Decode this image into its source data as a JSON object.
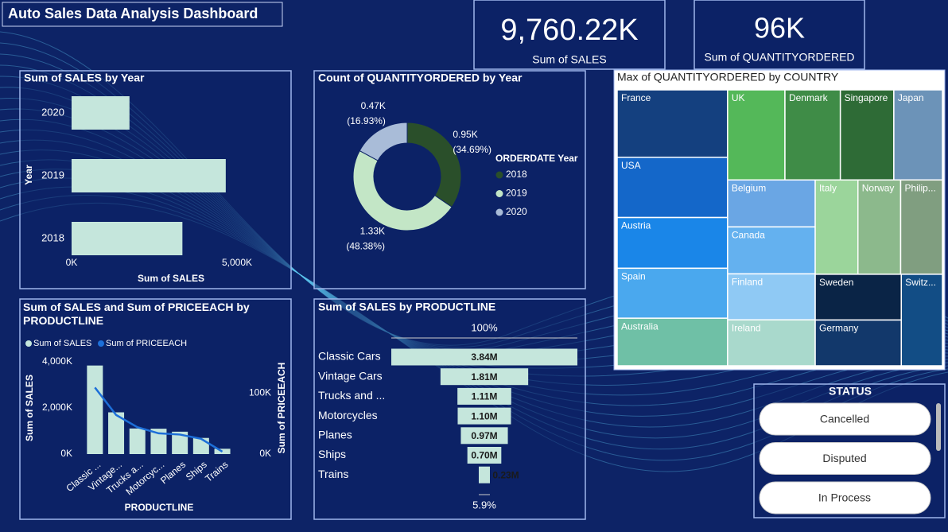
{
  "title": "Auto Sales Data Analysis Dashboard",
  "kpis": [
    {
      "value": 9760.22,
      "value_label": "9,760.22K",
      "caption": "Sum of SALES"
    },
    {
      "value": 96,
      "value_label": "96K",
      "caption": "Sum of QUANTITYORDERED"
    }
  ],
  "chart_data": [
    {
      "type": "hbar",
      "title": "Sum of SALES by Year",
      "x_label": "Sum of SALES",
      "y_label": "Year",
      "categories": [
        "2018",
        "2019",
        "2020"
      ],
      "values": [
        3350,
        4660,
        1750
      ],
      "color": "#c5e6dc",
      "xlim": [
        0,
        5000
      ],
      "xticks": [
        {
          "value": 0,
          "label": "0K"
        },
        {
          "value": 5000,
          "label": "5,000K"
        }
      ]
    },
    {
      "type": "donut",
      "title": "Count of QUANTITYORDERED by Year",
      "legend_title": "ORDERDATE Year",
      "categories": [
        "2018",
        "2019",
        "2020"
      ],
      "values": [
        0.95,
        1.33,
        0.47
      ],
      "value_labels": [
        "0.95K",
        "1.33K",
        "0.47K"
      ],
      "percents": [
        34.69,
        48.38,
        16.93
      ],
      "percent_labels": [
        "(34.69%)",
        "(48.38%)",
        "(16.93%)"
      ],
      "colors": [
        "#2a4f2a",
        "#c3e6c6",
        "#a9bcd8"
      ]
    },
    {
      "type": "combo",
      "title": "Sum of SALES and Sum of PRICEEACH by PRODUCTLINE",
      "x_label": "PRODUCTLINE",
      "y_label": "Sum of SALES",
      "y2_label": "Sum of PRICEEACH",
      "categories": [
        "Classic ...",
        "Vintage...",
        "Trucks a...",
        "Motorcyc...",
        "Planes",
        "Ships",
        "Trains"
      ],
      "series": [
        {
          "name": "Sum of SALES",
          "color": "#c5e6dc",
          "values": [
            3840,
            1810,
            1110,
            1100,
            970,
            700,
            230
          ]
        },
        {
          "name": "Sum of PRICEEACH",
          "color": "#1d6fd8",
          "values": [
            109,
            64,
            44,
            34,
            32,
            25,
            4
          ],
          "axis": "y2"
        }
      ],
      "ylim": [
        0,
        4500
      ],
      "yticks": [
        {
          "value": 0,
          "label": "0K"
        },
        {
          "value": 2000,
          "label": "2,000K"
        },
        {
          "value": 4000,
          "label": "4,000K"
        }
      ],
      "y2lim": [
        0,
        170
      ],
      "y2ticks": [
        {
          "value": 0,
          "label": "0K"
        },
        {
          "value": 100,
          "label": "100K"
        }
      ]
    },
    {
      "type": "funnel",
      "title": "Sum of SALES by PRODUCTLINE",
      "categories": [
        "Classic Cars",
        "Vintage Cars",
        "Trucks and ...",
        "Motorcycles",
        "Planes",
        "Ships",
        "Trains"
      ],
      "values": [
        3.84,
        1.81,
        1.11,
        1.1,
        0.97,
        0.7,
        0.23
      ],
      "value_labels": [
        "3.84M",
        "1.81M",
        "1.11M",
        "1.10M",
        "0.97M",
        "0.70M",
        "0.23M"
      ],
      "color": "#c5e6dc",
      "top_label": {
        "value": 100,
        "label": "100%"
      },
      "bottom_label": {
        "value": 5.9,
        "label": "5.9%"
      }
    },
    {
      "type": "treemap",
      "title": "Max of QUANTITYORDERED by COUNTRY",
      "categories": [
        "France",
        "USA",
        "Austria",
        "Spain",
        "Australia",
        "UK",
        "Denmark",
        "Singapore",
        "Japan",
        "Belgium",
        "Canada",
        "Finland",
        "Ireland",
        "Italy",
        "Norway",
        "Philip...",
        "Sweden",
        "Germany",
        "Switz..."
      ],
      "values": [
        85,
        76,
        64,
        63,
        60,
        59,
        57,
        55,
        50,
        47,
        47,
        46,
        46,
        46,
        46,
        45,
        45,
        45,
        43
      ],
      "colors": [
        "#14407f",
        "#1467c9",
        "#1a86e8",
        "#4aa8ee",
        "#6fc0a6",
        "#54b859",
        "#3f8c47",
        "#2e6b36",
        "#6c93b8",
        "#6aa6e4",
        "#64b1ef",
        "#8fc9f4",
        "#a9d9cc",
        "#9bd59b",
        "#8cb98c",
        "#809e80",
        "#0a2446",
        "#12386b",
        "#124d85"
      ]
    }
  ],
  "slicer": {
    "title": "STATUS",
    "items": [
      "Cancelled",
      "Disputed",
      "In Process"
    ]
  }
}
